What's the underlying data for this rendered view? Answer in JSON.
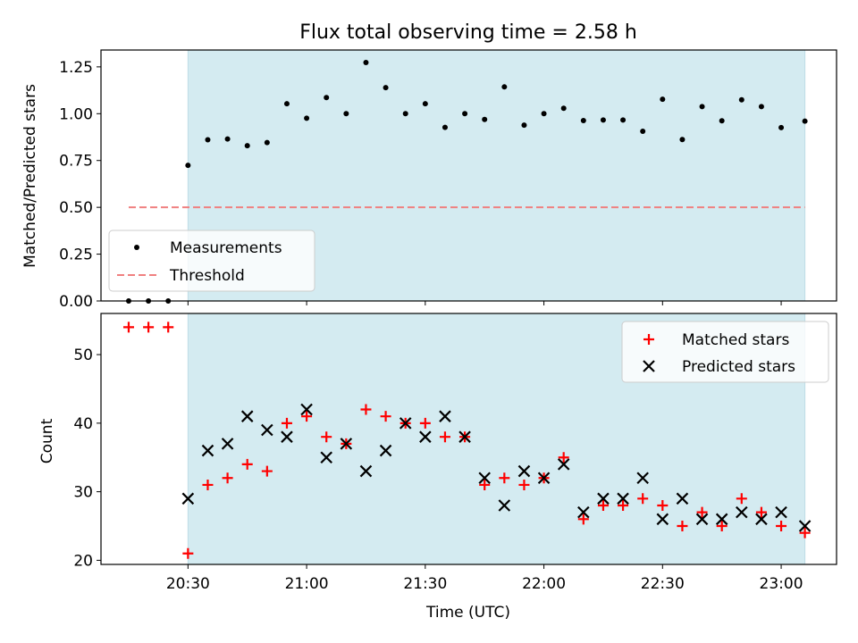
{
  "chart_data": [
    {
      "type": "scatter",
      "title": "Flux total observing time = 2.58 h",
      "xlabel": "",
      "ylabel": "Matched/Predicted stars",
      "ylim": [
        0,
        1.34
      ],
      "yticks": [
        0,
        0.25,
        0.5,
        0.75,
        1.0,
        1.25
      ],
      "ytick_labels": [
        "0.00",
        "0.25",
        "0.50",
        "0.75",
        "1.00",
        "1.25"
      ],
      "xlim": [
        "20:08",
        "23:14"
      ],
      "observing_window": [
        "20:30",
        "23:06"
      ],
      "observing_window_color": "#d4ebf1",
      "legend_position": "lower-left",
      "series": [
        {
          "name": "Measurements",
          "marker": "dot",
          "color": "#000000",
          "x": [
            "20:15",
            "20:20",
            "20:25",
            "20:30",
            "20:35",
            "20:40",
            "20:45",
            "20:50",
            "20:55",
            "21:00",
            "21:05",
            "21:10",
            "21:15",
            "21:20",
            "21:25",
            "21:30",
            "21:35",
            "21:40",
            "21:45",
            "21:50",
            "21:55",
            "22:00",
            "22:05",
            "22:10",
            "22:15",
            "22:20",
            "22:25",
            "22:30",
            "22:35",
            "22:40",
            "22:45",
            "22:50",
            "22:55",
            "23:00",
            "23:06"
          ],
          "y": [
            0.0,
            0.0,
            0.0,
            0.724,
            0.861,
            0.865,
            0.829,
            0.846,
            1.053,
            0.976,
            1.086,
            1.0,
            1.273,
            1.139,
            1.0,
            1.053,
            0.927,
            1.0,
            0.969,
            1.143,
            0.939,
            1.0,
            1.029,
            0.963,
            0.966,
            0.966,
            0.906,
            1.077,
            0.862,
            1.038,
            0.962,
            1.074,
            1.038,
            0.926,
            0.96
          ]
        },
        {
          "name": "Threshold",
          "style": "dashed-line",
          "color": "#f08080",
          "x": [
            "20:15",
            "23:06"
          ],
          "y": [
            0.5,
            0.5
          ]
        }
      ]
    },
    {
      "type": "scatter",
      "title": "",
      "xlabel": "Time (UTC)",
      "ylabel": "Count",
      "ylim": [
        19.4,
        56
      ],
      "yticks": [
        20,
        30,
        40,
        50
      ],
      "ytick_labels": [
        "20",
        "30",
        "40",
        "50"
      ],
      "xlim": [
        "20:08",
        "23:14"
      ],
      "xticks": [
        "20:30",
        "21:00",
        "21:30",
        "22:00",
        "22:30",
        "23:00"
      ],
      "observing_window": [
        "20:30",
        "23:06"
      ],
      "observing_window_color": "#d4ebf1",
      "legend_position": "upper-right",
      "series": [
        {
          "name": "Matched stars",
          "marker": "plus",
          "color": "#ff0000",
          "x": [
            "20:15",
            "20:20",
            "20:25",
            "20:30",
            "20:35",
            "20:40",
            "20:45",
            "20:50",
            "20:55",
            "21:00",
            "21:05",
            "21:10",
            "21:15",
            "21:20",
            "21:25",
            "21:30",
            "21:35",
            "21:40",
            "21:45",
            "21:50",
            "21:55",
            "22:00",
            "22:05",
            "22:10",
            "22:15",
            "22:20",
            "22:25",
            "22:30",
            "22:35",
            "22:40",
            "22:45",
            "22:50",
            "22:55",
            "23:00",
            "23:06"
          ],
          "y": [
            54,
            54,
            54,
            21,
            31,
            32,
            34,
            33,
            40,
            41,
            38,
            37,
            42,
            41,
            40,
            40,
            38,
            38,
            31,
            32,
            31,
            32,
            35,
            26,
            28,
            28,
            29,
            28,
            25,
            27,
            25,
            29,
            27,
            25,
            24
          ]
        },
        {
          "name": "Predicted stars",
          "marker": "x",
          "color": "#000000",
          "x": [
            "20:30",
            "20:35",
            "20:40",
            "20:45",
            "20:50",
            "20:55",
            "21:00",
            "21:05",
            "21:10",
            "21:15",
            "21:20",
            "21:25",
            "21:30",
            "21:35",
            "21:40",
            "21:45",
            "21:50",
            "21:55",
            "22:00",
            "22:05",
            "22:10",
            "22:15",
            "22:20",
            "22:25",
            "22:30",
            "22:35",
            "22:40",
            "22:45",
            "22:50",
            "22:55",
            "23:00",
            "23:06"
          ],
          "y": [
            29,
            36,
            37,
            41,
            39,
            38,
            42,
            35,
            37,
            33,
            36,
            40,
            38,
            41,
            38,
            32,
            28,
            33,
            32,
            34,
            27,
            29,
            29,
            32,
            26,
            29,
            26,
            26,
            27,
            26,
            27,
            25
          ]
        }
      ]
    }
  ]
}
